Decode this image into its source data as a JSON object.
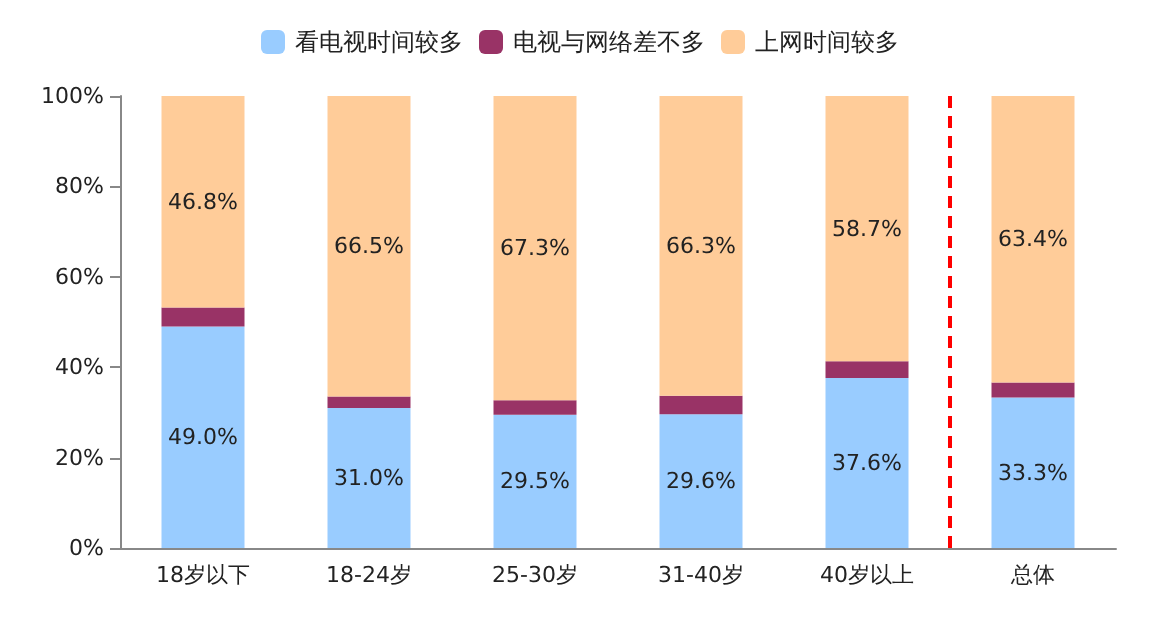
{
  "chart_data": {
    "type": "bar",
    "stacked": true,
    "categories": [
      "18岁以下",
      "18-24岁",
      "25-30岁",
      "31-40岁",
      "40岁以上",
      "总体"
    ],
    "series": [
      {
        "name": "看电视时间较多",
        "color": "#99ccff",
        "values": [
          49.0,
          31.0,
          29.5,
          29.6,
          37.6,
          33.3
        ],
        "value_labels": [
          "49.0%",
          "31.0%",
          "29.5%",
          "29.6%",
          "37.6%",
          "33.3%"
        ]
      },
      {
        "name": "电视与网络差不多",
        "color": "#993366",
        "values": [
          4.2,
          2.5,
          3.2,
          4.1,
          3.7,
          3.3
        ]
      },
      {
        "name": "上网时间较多",
        "color": "#ffcc99",
        "values": [
          46.8,
          66.5,
          67.3,
          66.3,
          58.7,
          63.4
        ],
        "value_labels": [
          "46.8%",
          "66.5%",
          "67.3%",
          "66.3%",
          "58.7%",
          "63.4%"
        ]
      }
    ],
    "ylim": [
      0,
      100
    ],
    "yticks": [
      {
        "value": 0,
        "label": "0%"
      },
      {
        "value": 20,
        "label": "20%"
      },
      {
        "value": 40,
        "label": "40%"
      },
      {
        "value": 60,
        "label": "60%"
      },
      {
        "value": 80,
        "label": "80%"
      },
      {
        "value": 100,
        "label": "100%"
      }
    ],
    "grid": false,
    "legend": "top",
    "ref_lines": [
      {
        "axis": "x",
        "value": "总体",
        "color": "#ff0000",
        "line_style": "dashed"
      }
    ]
  }
}
